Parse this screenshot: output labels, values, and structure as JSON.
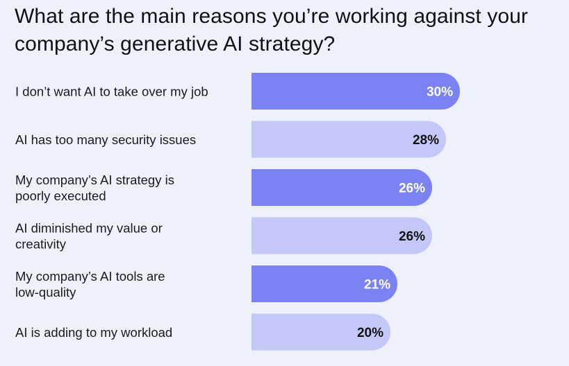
{
  "chart_data": {
    "type": "bar",
    "orientation": "horizontal",
    "title": "What are the main reasons you’re working against your company’s generative AI strategy?",
    "categories": [
      [
        "I don’t want AI to take over my job"
      ],
      [
        "AI has too many security issues"
      ],
      [
        "My company’s AI strategy is",
        "poorly executed"
      ],
      [
        "AI diminished my value or",
        "creativity"
      ],
      [
        "My company’s AI tools are",
        "low-quality"
      ],
      [
        "AI is adding to my workload"
      ]
    ],
    "values": [
      30,
      28,
      26,
      26,
      21,
      20
    ],
    "value_labels": [
      "30%",
      "28%",
      "26%",
      "26%",
      "21%",
      "20%"
    ],
    "unit": "%",
    "grid": false,
    "legend": "none",
    "colors": {
      "bar_dark": "#7b83f3",
      "bar_light": "#c4c8f7",
      "label_on_dark": "#ffffff",
      "label_on_light": "#111111",
      "background": "#eef0fb"
    }
  }
}
